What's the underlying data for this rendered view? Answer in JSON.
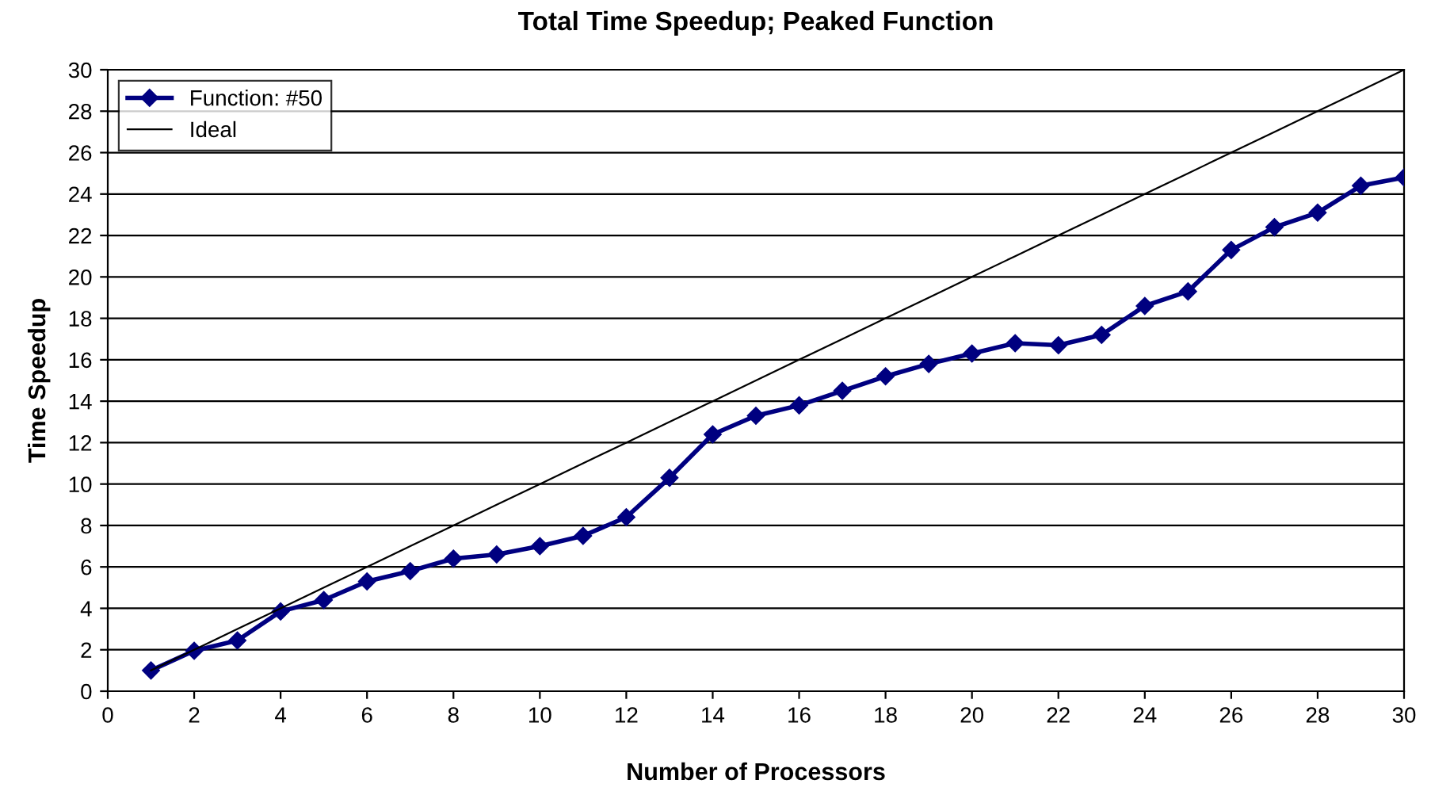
{
  "chart_data": {
    "type": "line",
    "title": "Total Time Speedup; Peaked Function",
    "xlabel": "Number of Processors",
    "ylabel": "Time Speedup",
    "x": [
      1,
      2,
      3,
      4,
      5,
      6,
      7,
      8,
      9,
      10,
      11,
      12,
      13,
      14,
      15,
      16,
      17,
      18,
      19,
      20,
      21,
      22,
      23,
      24,
      25,
      26,
      27,
      28,
      29,
      30
    ],
    "series": [
      {
        "name": "Function: #50",
        "color": "#000080",
        "marker": "diamond",
        "values": [
          1.0,
          1.95,
          2.45,
          3.85,
          4.4,
          5.3,
          5.8,
          6.4,
          6.6,
          7.0,
          7.5,
          8.4,
          10.3,
          12.4,
          13.3,
          13.8,
          14.5,
          15.2,
          15.8,
          16.3,
          16.8,
          16.7,
          17.2,
          18.6,
          19.3,
          21.3,
          22.4,
          23.1,
          24.4,
          24.8
        ]
      },
      {
        "name": "Ideal",
        "color": "#000000",
        "marker": "none",
        "values": [
          1,
          2,
          3,
          4,
          5,
          6,
          7,
          8,
          9,
          10,
          11,
          12,
          13,
          14,
          15,
          16,
          17,
          18,
          19,
          20,
          21,
          22,
          23,
          24,
          25,
          26,
          27,
          28,
          29,
          30
        ]
      }
    ],
    "xlim": [
      0,
      30
    ],
    "xticks": [
      0,
      2,
      4,
      6,
      8,
      10,
      12,
      14,
      16,
      18,
      20,
      22,
      24,
      26,
      28,
      30
    ],
    "ylim": [
      0,
      30
    ],
    "yticks": [
      0,
      2,
      4,
      6,
      8,
      10,
      12,
      14,
      16,
      18,
      20,
      22,
      24,
      26,
      28,
      30
    ],
    "grid": "y",
    "legend": "top left"
  }
}
